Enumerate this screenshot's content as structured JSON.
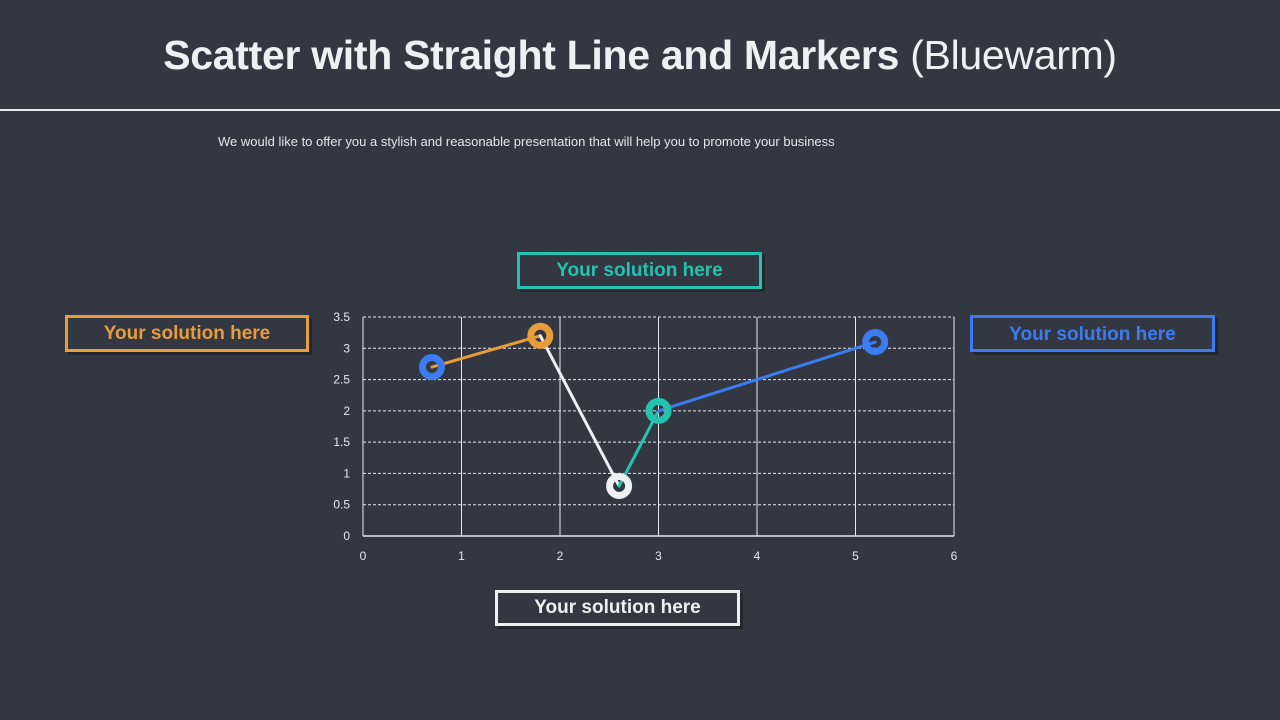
{
  "header": {
    "title_bold": "Scatter with Straight Line and Markers",
    "title_light": "(Bluewarm)",
    "subtitle": "We would like to offer you a stylish and reasonable presentation that will help you to promote  your business"
  },
  "callouts": {
    "orange": "Your solution here",
    "teal": "Your solution here",
    "blue": "Your solution here",
    "white": "Your solution here"
  },
  "colors": {
    "background": "#333741",
    "orange": "#e89c3a",
    "teal": "#24c3ae",
    "blue": "#3b7cf0",
    "white": "#eef1f4",
    "grid": "#e6e9ee"
  },
  "chart_data": {
    "type": "scatter",
    "title": "",
    "xlabel": "",
    "ylabel": "",
    "xlim": [
      0,
      6
    ],
    "ylim": [
      0,
      3.5
    ],
    "x_ticks": [
      "0",
      "1",
      "2",
      "3",
      "4",
      "5",
      "6"
    ],
    "y_ticks": [
      "0",
      "0.5",
      "1",
      "1.5",
      "2",
      "2.5",
      "3",
      "3.5"
    ],
    "grid": true,
    "legend": "none",
    "points": [
      {
        "x": 0.7,
        "y": 2.7,
        "marker_color": "#3b7cf0"
      },
      {
        "x": 1.8,
        "y": 3.2,
        "marker_color": "#e89c3a"
      },
      {
        "x": 2.6,
        "y": 0.8,
        "marker_color": "#eef1f4"
      },
      {
        "x": 3.0,
        "y": 2.0,
        "marker_color": "#24c3ae"
      },
      {
        "x": 5.2,
        "y": 3.1,
        "marker_color": "#3b7cf0"
      }
    ],
    "segments": [
      {
        "from": 0,
        "to": 1,
        "color": "#e89c3a"
      },
      {
        "from": 1,
        "to": 2,
        "color": "#eef1f4"
      },
      {
        "from": 2,
        "to": 3,
        "color": "#24c3ae"
      },
      {
        "from": 3,
        "to": 4,
        "color": "#3b7cf0"
      }
    ]
  }
}
